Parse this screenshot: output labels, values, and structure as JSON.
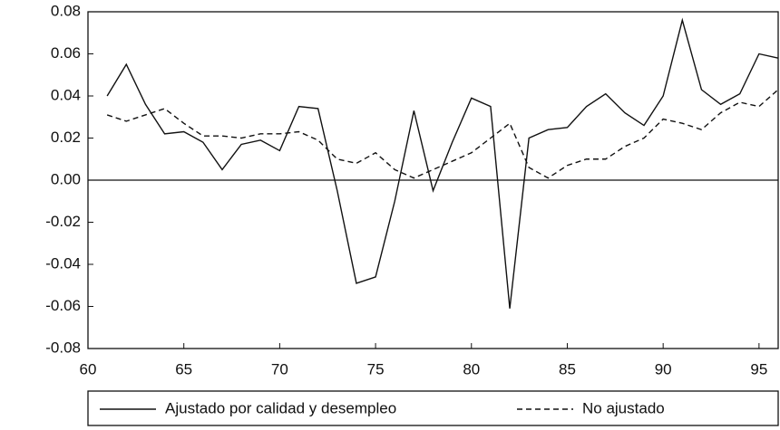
{
  "chart_data": {
    "type": "line",
    "x": [
      61,
      62,
      63,
      64,
      65,
      66,
      67,
      68,
      69,
      70,
      71,
      72,
      73,
      74,
      75,
      76,
      77,
      78,
      79,
      80,
      81,
      82,
      83,
      84,
      85,
      86,
      87,
      88,
      89,
      90,
      91,
      92,
      93,
      94,
      95,
      96
    ],
    "series": [
      {
        "name": "Ajustado por calidad y desempleo",
        "color": "#111111",
        "dash": "solid",
        "values": [
          0.04,
          0.055,
          0.036,
          0.022,
          0.023,
          0.018,
          0.005,
          0.017,
          0.019,
          0.014,
          0.035,
          0.034,
          -0.005,
          -0.049,
          -0.046,
          -0.01,
          0.033,
          -0.005,
          0.018,
          0.039,
          0.035,
          -0.061,
          0.02,
          0.024,
          0.025,
          0.035,
          0.041,
          0.032,
          0.026,
          0.04,
          0.076,
          0.043,
          0.036,
          0.041,
          0.06,
          0.058
        ]
      },
      {
        "name": "No ajustado",
        "color": "#111111",
        "dash": "dashed",
        "values": [
          0.031,
          0.028,
          0.031,
          0.034,
          0.027,
          0.021,
          0.021,
          0.02,
          0.022,
          0.022,
          0.023,
          0.019,
          0.01,
          0.008,
          0.013,
          0.005,
          0.001,
          0.005,
          0.009,
          0.013,
          0.02,
          0.027,
          0.006,
          0.001,
          0.007,
          0.01,
          0.01,
          0.016,
          0.02,
          0.029,
          0.027,
          0.024,
          0.032,
          0.037,
          0.035,
          0.043
        ]
      }
    ],
    "xlim": [
      60,
      96
    ],
    "xticks": [
      60,
      65,
      70,
      75,
      80,
      85,
      90,
      95
    ],
    "ylim": [
      -0.08,
      0.08
    ],
    "yticks": [
      {
        "value": -0.08,
        "label": "-0.08"
      },
      {
        "value": -0.06,
        "label": "-0.06"
      },
      {
        "value": -0.04,
        "label": "-0.04"
      },
      {
        "value": -0.02,
        "label": "-0.02"
      },
      {
        "value": 0,
        "label": "0.00"
      },
      {
        "value": 0.02,
        "label": "0.02"
      },
      {
        "value": 0.04,
        "label": "0.04"
      },
      {
        "value": 0.06,
        "label": "0.06"
      },
      {
        "value": 0.08,
        "label": "0.08"
      }
    ],
    "hline": 0,
    "legend": "bottom"
  }
}
